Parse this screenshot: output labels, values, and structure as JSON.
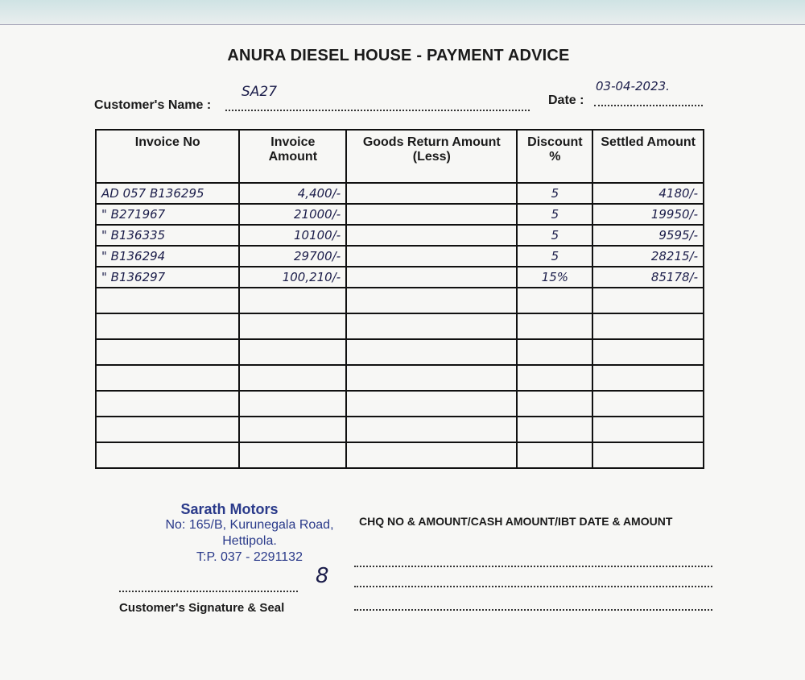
{
  "title": "ANURA DIESEL HOUSE - PAYMENT ADVICE",
  "customer": {
    "label": "Customer's Name :",
    "value": "SA27"
  },
  "date": {
    "label": "Date :",
    "value": "03-04-2023."
  },
  "table": {
    "headers": [
      "Invoice No",
      "Invoice Amount",
      "Goods Return Amount (Less)",
      "Discount %",
      "Settled Amount"
    ],
    "rows": [
      [
        "AD 057 B136295",
        "4,400/-",
        "",
        "5",
        "4180/-"
      ],
      [
        "\" B271967",
        "21000/-",
        "",
        "5",
        "19950/-"
      ],
      [
        "\" B136335",
        "10100/-",
        "",
        "5",
        "9595/-"
      ],
      [
        "\" B136294",
        "29700/-",
        "",
        "5",
        "28215/-"
      ],
      [
        "\" B136297",
        "100,210/-",
        "",
        "15%",
        "85178/-"
      ]
    ]
  },
  "stamp": {
    "name": "Sarath Motors",
    "address": "No: 165/B, Kurunegala Road,",
    "city": "Hettipola.",
    "phone": "T:P. 037 - 2291132"
  },
  "payment_label": "CHQ NO & AMOUNT/CASH AMOUNT/IBT DATE & AMOUNT",
  "signature_label": "Customer's Signature & Seal",
  "signature_mark": "8"
}
